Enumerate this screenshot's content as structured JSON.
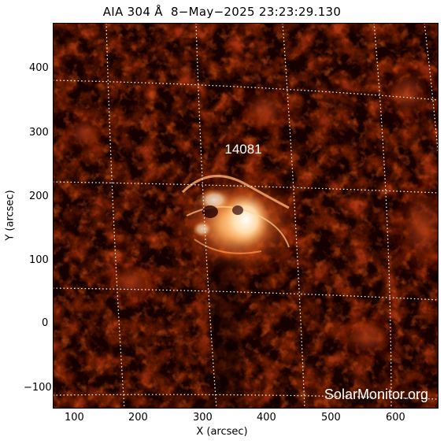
{
  "title": "AIA 304 Å  8−May−2025 23:23:29.130",
  "xlabel": "X (arcsec)",
  "ylabel": "Y (arcsec)",
  "x_ticks": [
    "100",
    "200",
    "300",
    "400",
    "500",
    "600"
  ],
  "y_ticks": [
    "400",
    "300",
    "200",
    "100",
    "0",
    "−100"
  ],
  "region_label": "14081",
  "watermark": "SolarMonitor.org",
  "colors": {
    "background": "#160000",
    "low": "#5a0800",
    "mid": "#b83a0c",
    "bright": "#ffd9a0",
    "grid": "#ffffff"
  }
}
